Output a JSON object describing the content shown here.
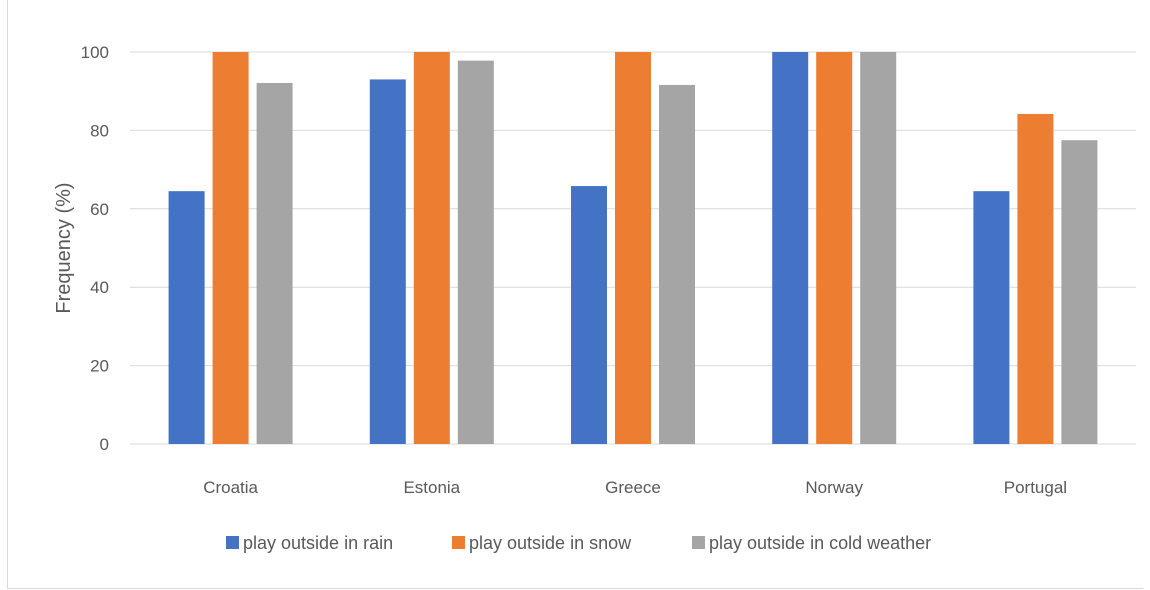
{
  "chart_data": {
    "type": "bar",
    "title": "",
    "xlabel": "",
    "ylabel": "Frequency (%)",
    "ylim": [
      0,
      100
    ],
    "yticks": [
      "0",
      "20",
      "40",
      "60",
      "80",
      "100"
    ],
    "grid": true,
    "legend_position": "bottom",
    "categories": [
      "Croatia",
      "Estonia",
      "Greece",
      "Norway",
      "Portugal"
    ],
    "series": [
      {
        "name": "play outside in rain",
        "color": "#4472c4",
        "values": [
          64.5,
          93,
          65.8,
          100,
          64.5
        ]
      },
      {
        "name": "play outside in snow",
        "color": "#ed7d31",
        "values": [
          100,
          100,
          100,
          100,
          84.2
        ]
      },
      {
        "name": "play outside in cold weather",
        "color": "#a5a5a5",
        "values": [
          92.1,
          97.8,
          91.6,
          100,
          77.5
        ]
      }
    ]
  }
}
